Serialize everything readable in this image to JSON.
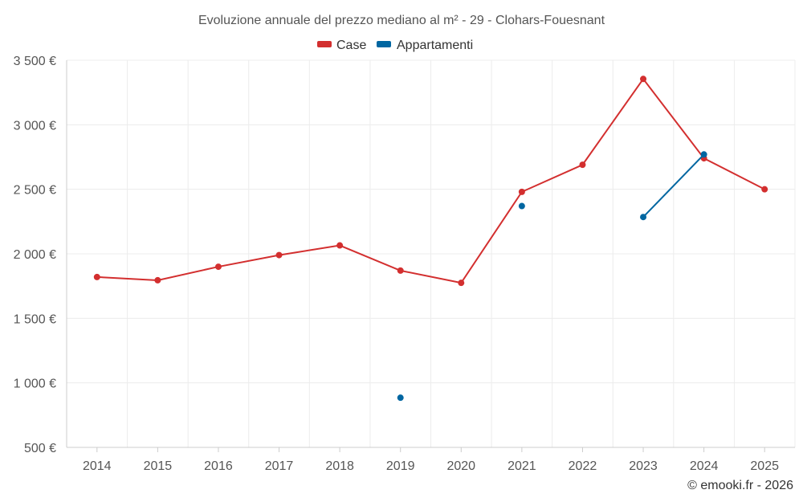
{
  "chart_data": {
    "type": "line",
    "title": "Evoluzione annuale del prezzo mediano al m² - 29 - Clohars-Fouesnant",
    "categories": [
      "2014",
      "2015",
      "2016",
      "2017",
      "2018",
      "2019",
      "2020",
      "2021",
      "2022",
      "2023",
      "2024",
      "2025"
    ],
    "y_ticks": [
      500,
      1000,
      1500,
      2000,
      2500,
      3000,
      3500
    ],
    "y_tick_labels": [
      "500 €",
      "1 000 €",
      "1 500 €",
      "2 000 €",
      "2 500 €",
      "3 000 €",
      "3 500 €"
    ],
    "ylim": [
      500,
      3500
    ],
    "grid": true,
    "legend_position": "top-center",
    "series": [
      {
        "name": "Case",
        "color": "#d32f2f",
        "values": [
          1820,
          1795,
          1900,
          1990,
          2065,
          1870,
          1775,
          2480,
          2690,
          3355,
          2740,
          2500
        ]
      },
      {
        "name": "Appartamenti",
        "color": "#0066a1",
        "values": [
          null,
          null,
          null,
          null,
          null,
          885,
          null,
          2370,
          null,
          2285,
          2770,
          null
        ]
      }
    ],
    "credit": "© emooki.fr - 2026"
  }
}
